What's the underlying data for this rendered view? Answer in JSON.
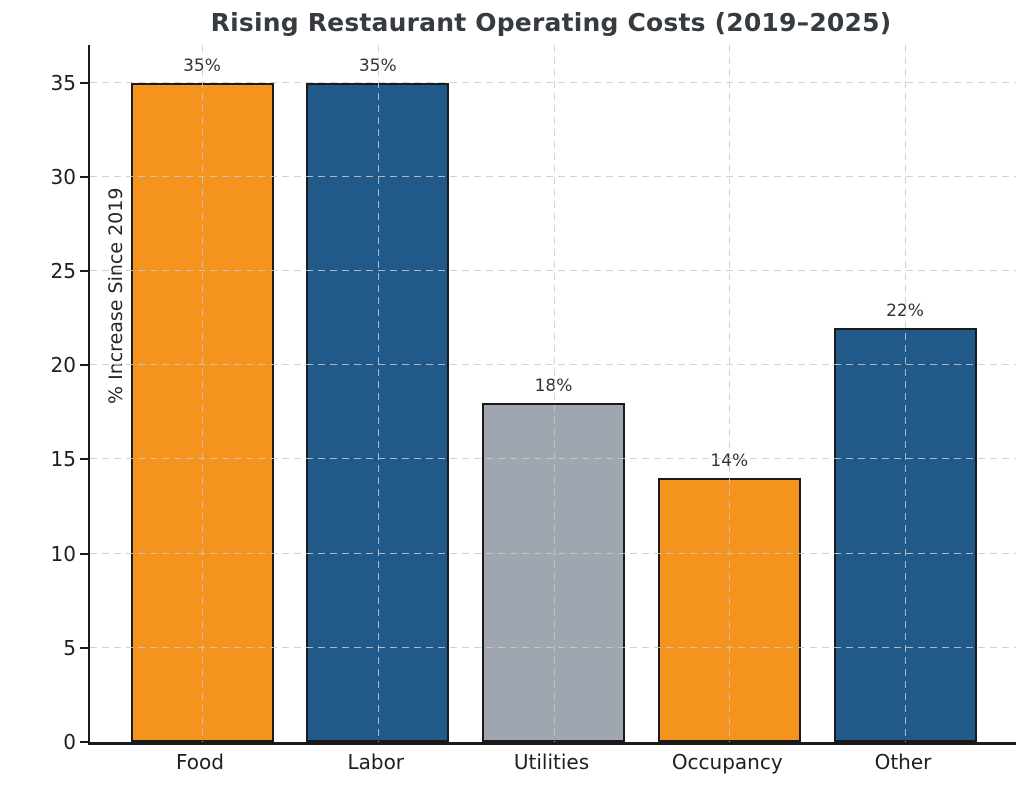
{
  "chart_data": {
    "type": "bar",
    "title": "Rising Restaurant Operating Costs (2019–2025)",
    "xlabel": "",
    "ylabel": "% Increase Since 2019",
    "categories": [
      "Food",
      "Labor",
      "Utilities",
      "Occupancy",
      "Other"
    ],
    "values": [
      35,
      35,
      18,
      14,
      22
    ],
    "bar_labels": [
      "35%",
      "35%",
      "18%",
      "14%",
      "22%"
    ],
    "bar_colors": [
      "#F4941E",
      "#20598A",
      "#9FA6B0",
      "#F4941E",
      "#20598A"
    ],
    "bar_edge_color": "#1A1A1A",
    "yticks": [
      0,
      5,
      10,
      15,
      20,
      25,
      30,
      35
    ],
    "ylim": [
      0,
      37
    ],
    "grid": "dashed, horizontal and vertical",
    "grid_color": "#CACACA",
    "legend": "none",
    "title_color": "#363B40",
    "background_color": "#FFFFFF"
  }
}
